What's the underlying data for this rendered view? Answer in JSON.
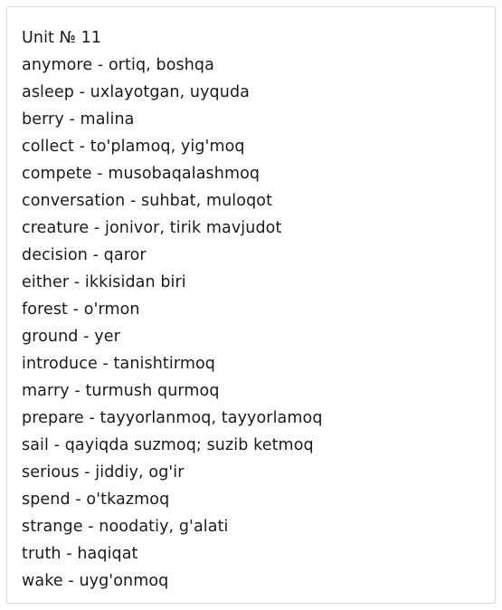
{
  "document": {
    "title": "Unit № 11",
    "entries": [
      "anymore - ortiq, boshqa",
      "asleep - uxlayotgan, uyquda",
      "berry - malina",
      "collect - to'plamoq, yig'moq",
      "compete - musobaqalashmoq",
      "conversation - suhbat, muloqot",
      "creature - jonivor, tirik mavjudot",
      "decision - qaror",
      "either - ikkisidan biri",
      "forest - o'rmon",
      "ground - yer",
      "introduce - tanishtirmoq",
      "marry - turmush qurmoq",
      "prepare - tayyorlanmoq, tayyorlamoq",
      "sail - qayiqda suzmoq; suzib ketmoq",
      "serious - jiddiy, og'ir",
      "spend - o'tkazmoq",
      "strange - noodatiy, g'alati",
      "truth - haqiqat",
      "wake - uyg'onmoq"
    ]
  }
}
